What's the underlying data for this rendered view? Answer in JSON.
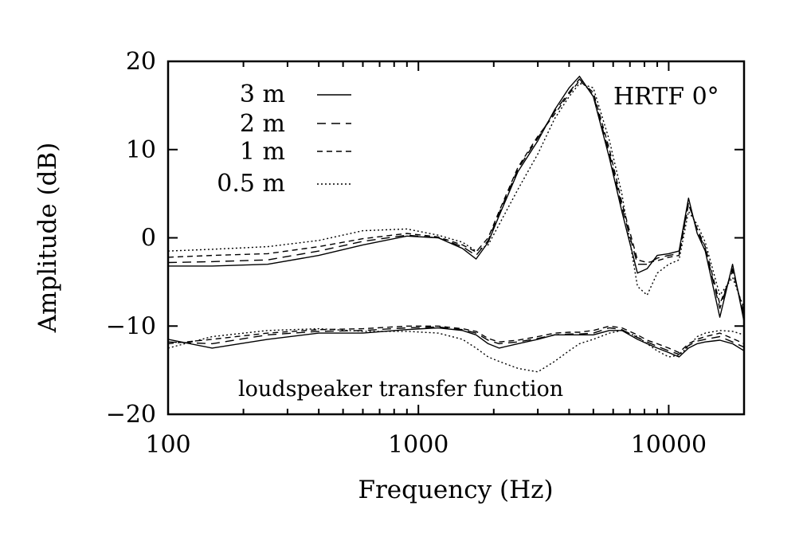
{
  "chart_data": {
    "type": "line",
    "title": "",
    "xlabel": "Frequency (Hz)",
    "ylabel": "Amplitude (dB)",
    "x_scale": "log",
    "xlim": [
      100,
      20000
    ],
    "ylim": [
      -20,
      20
    ],
    "x_ticks": [
      100,
      1000,
      10000
    ],
    "x_tick_labels": [
      "100",
      "1000",
      "10000"
    ],
    "y_ticks": [
      20,
      10,
      0,
      -10,
      -20
    ],
    "y_tick_labels": [
      "20",
      "10",
      "0",
      "−10",
      "−20"
    ],
    "grid": false,
    "legend_position": "top-left",
    "annotations": {
      "hrtf_label": "HRTF 0°",
      "loudspeaker_label": "loudspeaker transfer function"
    },
    "x": [
      100,
      150,
      250,
      400,
      600,
      900,
      1200,
      1500,
      1700,
      1900,
      2100,
      2500,
      3000,
      3500,
      4000,
      4400,
      5000,
      5800,
      6500,
      7500,
      8200,
      9000,
      10000,
      11000,
      12000,
      13000,
      14000,
      16000,
      18000,
      20000
    ],
    "series": [
      {
        "name": "3 m",
        "dash": "solid",
        "hrtf": [
          -3.2,
          -3.2,
          -3.0,
          -2.0,
          -0.8,
          0.2,
          0.0,
          -1.2,
          -2.4,
          -0.5,
          2.5,
          7.5,
          11.0,
          14.5,
          17.0,
          18.3,
          16.0,
          9.0,
          3.0,
          -4.0,
          -3.5,
          -2.0,
          -1.8,
          -1.5,
          4.5,
          0.5,
          -1.5,
          -9.0,
          -3.0,
          -9.5
        ],
        "loudspeaker": [
          -11.5,
          -12.5,
          -11.5,
          -10.8,
          -10.8,
          -10.4,
          -10.2,
          -10.5,
          -11.0,
          -12.0,
          -12.5,
          -12.0,
          -11.5,
          -11.0,
          -11.0,
          -11.0,
          -11.0,
          -10.5,
          -10.5,
          -11.5,
          -12.0,
          -12.5,
          -13.0,
          -13.5,
          -12.5,
          -12.0,
          -11.8,
          -11.6,
          -12.0,
          -12.8
        ]
      },
      {
        "name": "2 m",
        "dash": "longdash",
        "hrtf": [
          -2.8,
          -2.7,
          -2.5,
          -1.5,
          -0.4,
          0.3,
          0.0,
          -1.0,
          -2.0,
          -0.3,
          2.8,
          7.8,
          11.3,
          14.3,
          16.5,
          18.0,
          16.2,
          9.5,
          3.5,
          -3.0,
          -3.0,
          -2.3,
          -2.0,
          -1.8,
          4.0,
          0.8,
          -1.2,
          -8.0,
          -3.5,
          -8.8
        ],
        "loudspeaker": [
          -11.8,
          -12.0,
          -11.0,
          -10.6,
          -10.5,
          -10.2,
          -10.1,
          -10.4,
          -10.8,
          -11.6,
          -12.0,
          -11.8,
          -11.4,
          -11.0,
          -10.9,
          -10.9,
          -10.8,
          -10.2,
          -10.4,
          -11.3,
          -11.8,
          -12.3,
          -12.8,
          -13.2,
          -12.2,
          -11.7,
          -11.5,
          -11.2,
          -11.8,
          -12.4
        ]
      },
      {
        "name": "1 m",
        "dash": "shortdash",
        "hrtf": [
          -2.2,
          -2.0,
          -1.8,
          -1.0,
          -0.1,
          0.5,
          0.1,
          -0.8,
          -1.6,
          0.0,
          3.0,
          8.0,
          11.5,
          14.0,
          16.3,
          17.8,
          16.5,
          10.0,
          4.0,
          -2.5,
          -2.8,
          -2.6,
          -2.2,
          -2.0,
          3.8,
          1.0,
          -1.0,
          -7.5,
          -3.8,
          -8.5
        ],
        "loudspeaker": [
          -12.0,
          -11.5,
          -10.8,
          -10.4,
          -10.3,
          -10.0,
          -10.0,
          -10.3,
          -10.6,
          -11.4,
          -11.8,
          -11.6,
          -11.2,
          -10.8,
          -10.7,
          -10.7,
          -10.5,
          -10.0,
          -10.2,
          -11.0,
          -11.6,
          -12.0,
          -12.5,
          -13.0,
          -12.0,
          -11.5,
          -11.2,
          -10.8,
          -11.4,
          -12.0
        ]
      },
      {
        "name": "0.5 m",
        "dash": "dotted",
        "hrtf": [
          -1.5,
          -1.3,
          -1.0,
          -0.3,
          0.8,
          1.0,
          0.3,
          -0.5,
          -1.5,
          -0.8,
          1.5,
          5.5,
          9.5,
          13.5,
          16.0,
          17.5,
          17.0,
          11.0,
          5.0,
          -5.5,
          -6.5,
          -4.0,
          -3.0,
          -2.5,
          3.0,
          1.5,
          -0.5,
          -6.5,
          -4.5,
          -8.0
        ],
        "loudspeaker": [
          -12.5,
          -11.2,
          -10.5,
          -10.3,
          -10.6,
          -10.6,
          -10.8,
          -11.5,
          -12.5,
          -13.5,
          -14.0,
          -14.8,
          -15.2,
          -14.0,
          -12.8,
          -12.0,
          -11.5,
          -10.8,
          -10.5,
          -11.2,
          -12.0,
          -12.8,
          -13.5,
          -13.3,
          -12.3,
          -11.2,
          -10.8,
          -10.5,
          -10.6,
          -11.0
        ]
      }
    ]
  }
}
